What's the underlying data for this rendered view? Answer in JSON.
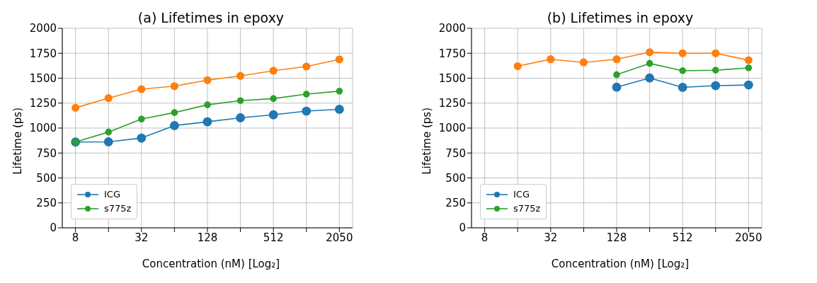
{
  "chart_data": [
    {
      "type": "line",
      "title": "(a) Lifetimes in epoxy",
      "xlabel": "Concentration (nM) [Log₂]",
      "ylabel": "Lifetime (ps)",
      "categories": [
        "8",
        null,
        "32",
        null,
        "128",
        null,
        "512",
        null,
        "2050"
      ],
      "ylim": [
        0,
        2000
      ],
      "yticks": [
        0,
        250,
        500,
        750,
        1000,
        1250,
        1500,
        1750,
        2000
      ],
      "grid": true,
      "legend": "bottom left",
      "marker": "circle",
      "line_style": "solid",
      "series": [
        {
          "name": "ICG",
          "color": "#1f77b4",
          "values": [
            860,
            862,
            900,
            1025,
            1063,
            1103,
            1133,
            1170,
            1188
          ]
        },
        {
          "color": "#ff7f0e",
          "values": [
            1203,
            1300,
            1390,
            1420,
            1480,
            1523,
            1575,
            1617,
            1688
          ]
        },
        {
          "name": "s775z",
          "color": "#2ca02c",
          "values": [
            860,
            960,
            1090,
            1155,
            1233,
            1275,
            1295,
            1340,
            1370
          ]
        }
      ]
    },
    {
      "type": "line",
      "title": "(b) Lifetimes in epoxy",
      "xlabel": "Concentration (nM) [Log₂]",
      "ylabel": "Lifetime (ps)",
      "categories": [
        "8",
        null,
        "32",
        null,
        "128",
        null,
        "512",
        null,
        "2050"
      ],
      "ylim": [
        0,
        2000
      ],
      "yticks": [
        0,
        250,
        500,
        750,
        1000,
        1250,
        1500,
        1750,
        2000
      ],
      "grid": true,
      "legend": "bottom left",
      "marker": "circle",
      "line_style": "solid",
      "series": [
        {
          "name": "ICG",
          "color": "#1f77b4",
          "values": [
            null,
            null,
            null,
            null,
            1410,
            1502,
            1408,
            1425,
            1432
          ]
        },
        {
          "color": "#ff7f0e",
          "values": [
            null,
            1620,
            1690,
            1658,
            1690,
            1760,
            1750,
            1750,
            1680
          ]
        },
        {
          "name": "s775z",
          "color": "#2ca02c",
          "values": [
            null,
            null,
            null,
            null,
            1535,
            1648,
            1575,
            1580,
            1603
          ]
        }
      ]
    }
  ]
}
